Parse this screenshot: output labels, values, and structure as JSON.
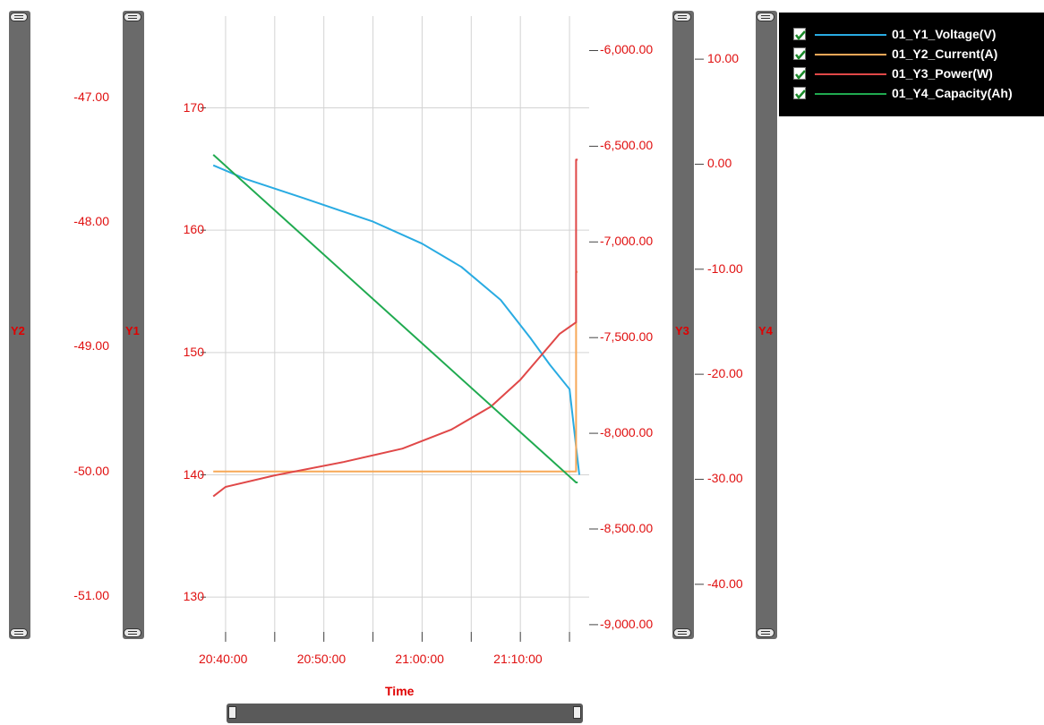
{
  "chart_data": {
    "type": "line",
    "xlabel": "Time",
    "x_ticks": [
      "20:40:00",
      "20:50:00",
      "21:00:00",
      "21:10:00"
    ],
    "x_range": [
      "20:38:00",
      "21:17:00"
    ],
    "axes": {
      "Y1": {
        "name": "Y1",
        "range": [
          126.5,
          177.5
        ],
        "ticks": [
          130,
          140,
          150,
          160,
          170
        ],
        "tick_labels": [
          "130",
          "140",
          "150",
          "160",
          "170"
        ]
      },
      "Y2": {
        "name": "Y2",
        "range": [
          -51.35,
          -46.35
        ],
        "tick_labels": [
          "-47.00",
          "-48.00",
          "-49.00",
          "-50.00",
          "-51.00"
        ],
        "ticks": [
          -47,
          -48,
          -49,
          -50,
          -51
        ]
      },
      "Y3": {
        "name": "Y3",
        "range": [
          -9080,
          -5820
        ],
        "tick_labels": [
          "-6,000.00",
          "-6,500.00",
          "-7,000.00",
          "-7,500.00",
          "-8,000.00",
          "-8,500.00",
          "-9,000.00"
        ],
        "ticks": [
          -6000,
          -6500,
          -7000,
          -7500,
          -8000,
          -8500,
          -9000
        ]
      },
      "Y4": {
        "name": "Y4",
        "range": [
          -45.3,
          14.1
        ],
        "tick_labels": [
          "10.00",
          "0.00",
          "-10.00",
          "-20.00",
          "-30.00",
          "-40.00"
        ],
        "ticks": [
          10,
          0,
          -10,
          -20,
          -30,
          -40
        ]
      }
    },
    "series": [
      {
        "name": "01_Y1_Voltage(V)",
        "axis": "Y1",
        "color": "#29abe2",
        "x": [
          "20:38:45",
          "20:42:00",
          "20:48:00",
          "20:55:00",
          "21:00:00",
          "21:04:00",
          "21:08:00",
          "21:11:00",
          "21:13:00",
          "21:15:00",
          "21:16:00"
        ],
        "y": [
          165.3,
          164.2,
          162.6,
          160.7,
          158.9,
          157.0,
          154.3,
          151.2,
          149.0,
          147.0,
          140.0
        ]
      },
      {
        "name": "01_Y2_Current(A)",
        "axis": "Y2",
        "color": "#f7a857",
        "x": [
          "20:38:45",
          "21:15:40",
          "21:15:40",
          "21:15:50"
        ],
        "y": [
          -50.0,
          -50.0,
          -48.4,
          -48.4
        ]
      },
      {
        "name": "01_Y3_Power(W)",
        "axis": "Y3",
        "color": "#e04848",
        "x": [
          "20:38:45",
          "20:40:00",
          "20:45:00",
          "20:52:00",
          "20:58:00",
          "21:03:00",
          "21:07:00",
          "21:10:00",
          "21:12:00",
          "21:14:00",
          "21:15:40",
          "21:15:40",
          "21:15:50"
        ],
        "y": [
          -8330,
          -8280,
          -8220,
          -8150,
          -8080,
          -7980,
          -7860,
          -7720,
          -7600,
          -7480,
          -7420,
          -6570,
          -6570
        ]
      },
      {
        "name": "01_Y4_Capacity(Ah)",
        "axis": "Y4",
        "color": "#20aa50",
        "x": [
          "20:38:45",
          "21:15:40",
          "21:15:50"
        ],
        "y": [
          0.9,
          -30.3,
          -30.3
        ]
      }
    ],
    "legend": "top-right",
    "grid": true
  },
  "legend_items": [
    {
      "label": "01_Y1_Voltage(V)",
      "color": "#29abe2"
    },
    {
      "label": "01_Y2_Current(A)",
      "color": "#f7a857"
    },
    {
      "label": "01_Y3_Power(W)",
      "color": "#e04848"
    },
    {
      "label": "01_Y4_Capacity(Ah)",
      "color": "#20aa50"
    }
  ]
}
